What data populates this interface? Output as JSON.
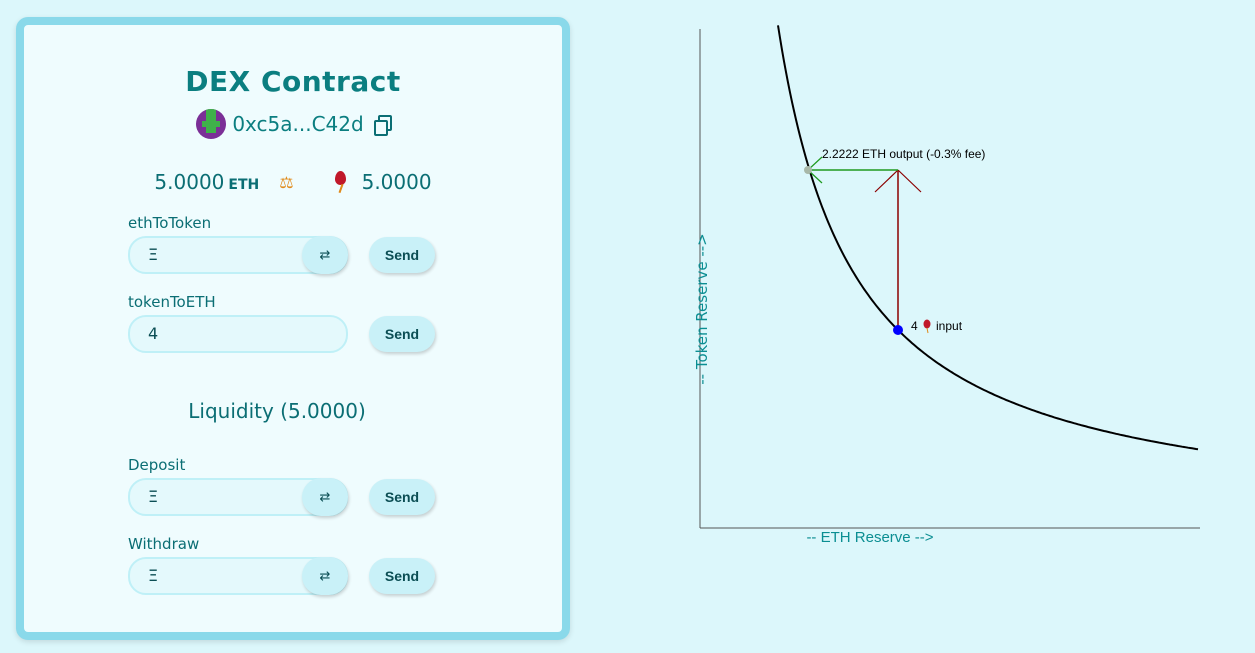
{
  "card": {
    "title": "DEX Contract",
    "address": "0xc5a...C42d",
    "eth_balance": "5.0000",
    "eth_unit": "ETH",
    "token_balance": "5.0000"
  },
  "forms": {
    "ethToToken": {
      "label": "ethToToken",
      "value": "Ξ",
      "send_label": "Send"
    },
    "tokenToETH": {
      "label": "tokenToETH",
      "value": "4",
      "send_label": "Send"
    },
    "liquidity_title": "Liquidity (5.0000)",
    "deposit": {
      "label": "Deposit",
      "value": "Ξ",
      "send_label": "Send"
    },
    "withdraw": {
      "label": "Withdraw",
      "value": "Ξ",
      "send_label": "Send"
    }
  },
  "chart_data": {
    "type": "line",
    "xlabel": "-- ETH Reserve -->",
    "ylabel": "-- Token Reserve -->",
    "input_label": "4",
    "input_suffix": "input",
    "output_label": "2.2222 ETH output (-0.3% fee)",
    "colors": {
      "curve": "#000000",
      "input_arrow": "#8b0000",
      "output_arrow": "#1e9a1e",
      "point": "#0000ff"
    }
  }
}
